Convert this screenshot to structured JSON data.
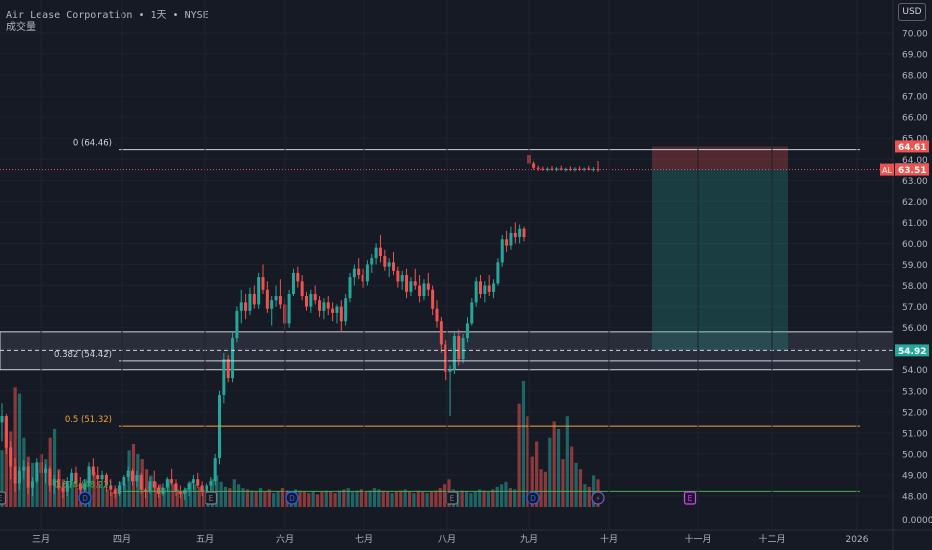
{
  "header": {
    "symbol_line": "Air Lease Corporation  •  1天  •  NYSE",
    "volume_label": "成交量",
    "currency_button": "USD"
  },
  "colors": {
    "background": "#161a25",
    "up": "#26a69a",
    "down": "#ef5350",
    "fib_0": "#d1d4dc",
    "fib_0382": "#d1d4dc",
    "fib_05": "#f0a43a",
    "fib_0618": "#4caf50",
    "last_price": "#ef5350",
    "current_line": "#26a69a"
  },
  "chart_data": {
    "type": "candlestick",
    "y_axis": {
      "ticks": [
        "70.00",
        "69.00",
        "68.00",
        "67.00",
        "66.00",
        "65.00",
        "64.00",
        "63.00",
        "62.00",
        "61.00",
        "60.00",
        "59.00",
        "58.00",
        "57.00",
        "56.00",
        "55.00",
        "54.00",
        "53.00",
        "52.00",
        "51.00",
        "50.00",
        "49.00",
        "48.00"
      ],
      "range": [
        47.5,
        70.5
      ],
      "volume_zero_label": "0.0000"
    },
    "x_axis": {
      "labels": [
        "三月",
        "四月",
        "五月",
        "六月",
        "七月",
        "八月",
        "九月",
        "十月",
        "十一月",
        "十二月",
        "2026"
      ]
    },
    "price_labels": {
      "top": "64.61",
      "mid": "63.53",
      "last_ticker": "AL",
      "last": "63.51",
      "current": "54.92"
    },
    "fibonacci": [
      {
        "label": "0 (64.46)",
        "level": 64.46,
        "color": "#d1d4dc"
      },
      {
        "label": "0.382 (54.42)",
        "level": 54.42,
        "color": "#d1d4dc"
      },
      {
        "label": "0.5 (51.32)",
        "level": 51.32,
        "color": "#f0a43a"
      },
      {
        "label": "0.618 (48.22)",
        "level": 48.22,
        "color": "#4caf50"
      }
    ],
    "zone": {
      "top": 55.8,
      "bottom": 54.0
    },
    "dashed_level": 54.92,
    "dotted_level": 63.51,
    "position_tool": {
      "entry": 63.53,
      "stop": 64.61,
      "target": 54.92
    },
    "events": [
      {
        "type": "D",
        "label": "D"
      },
      {
        "type": "E",
        "label": "E"
      },
      {
        "type": "D",
        "label": "D"
      },
      {
        "type": "E",
        "label": "E"
      },
      {
        "type": "D",
        "label": "D"
      },
      {
        "type": "split",
        "label": "⚡"
      },
      {
        "type": "E-future",
        "label": "E"
      }
    ],
    "ohlc": [
      [
        51.5,
        52.4,
        50.6,
        51.8
      ],
      [
        51.8,
        51.9,
        50.0,
        50.3
      ],
      [
        50.3,
        50.6,
        48.8,
        49.4
      ],
      [
        49.4,
        49.8,
        48.2,
        48.6
      ],
      [
        48.6,
        49.4,
        48.3,
        49.2
      ],
      [
        49.2,
        49.7,
        48.8,
        49.4
      ],
      [
        49.4,
        49.6,
        48.1,
        48.4
      ],
      [
        48.4,
        48.9,
        48.0,
        48.7
      ],
      [
        48.7,
        49.8,
        48.6,
        49.6
      ],
      [
        49.6,
        49.9,
        48.9,
        49.1
      ],
      [
        49.1,
        49.5,
        48.6,
        49.3
      ],
      [
        49.3,
        49.4,
        48.2,
        48.5
      ],
      [
        48.5,
        49.0,
        48.1,
        48.8
      ],
      [
        48.8,
        49.2,
        48.3,
        48.4
      ],
      [
        48.4,
        48.6,
        47.9,
        48.2
      ],
      [
        48.2,
        48.9,
        48.0,
        48.7
      ],
      [
        48.7,
        49.3,
        48.5,
        49.1
      ],
      [
        49.1,
        49.4,
        48.4,
        48.6
      ],
      [
        48.6,
        48.9,
        48.1,
        48.3
      ],
      [
        48.3,
        48.8,
        48.0,
        48.6
      ],
      [
        48.6,
        49.6,
        48.5,
        49.4
      ],
      [
        49.4,
        49.8,
        48.9,
        49.0
      ],
      [
        49.0,
        49.4,
        48.5,
        48.8
      ],
      [
        48.8,
        49.2,
        48.4,
        49.0
      ],
      [
        49.0,
        49.1,
        48.2,
        48.5
      ],
      [
        48.5,
        48.8,
        48.0,
        48.3
      ],
      [
        48.3,
        48.5,
        47.9,
        48.1
      ],
      [
        48.1,
        48.7,
        48.0,
        48.5
      ],
      [
        48.5,
        49.0,
        48.3,
        48.9
      ],
      [
        48.9,
        49.4,
        48.7,
        49.2
      ],
      [
        49.2,
        49.3,
        48.5,
        48.7
      ],
      [
        48.7,
        49.2,
        48.4,
        49.0
      ],
      [
        49.0,
        49.1,
        48.1,
        48.3
      ],
      [
        48.3,
        48.4,
        47.9,
        48.2
      ],
      [
        48.2,
        48.9,
        48.1,
        48.7
      ],
      [
        48.7,
        49.2,
        48.2,
        48.4
      ],
      [
        48.4,
        48.5,
        47.9,
        48.1
      ],
      [
        48.1,
        48.6,
        48.0,
        48.4
      ],
      [
        48.4,
        48.9,
        48.2,
        48.8
      ],
      [
        48.8,
        49.3,
        48.5,
        48.6
      ],
      [
        48.6,
        48.8,
        48.0,
        48.2
      ],
      [
        48.2,
        48.5,
        47.9,
        48.1
      ],
      [
        48.1,
        48.4,
        47.8,
        48.3
      ],
      [
        48.3,
        48.7,
        48.0,
        48.6
      ],
      [
        48.6,
        49.0,
        48.3,
        48.8
      ],
      [
        48.8,
        49.1,
        48.4,
        48.5
      ],
      [
        48.5,
        48.7,
        48.0,
        48.2
      ],
      [
        48.2,
        48.6,
        47.9,
        48.5
      ],
      [
        48.5,
        48.9,
        48.2,
        48.7
      ],
      [
        48.7,
        50.0,
        48.5,
        49.8
      ],
      [
        49.8,
        53.0,
        49.5,
        52.8
      ],
      [
        52.8,
        54.8,
        52.4,
        54.5
      ],
      [
        54.5,
        54.7,
        53.4,
        53.6
      ],
      [
        53.6,
        55.8,
        53.4,
        55.5
      ],
      [
        55.5,
        57.0,
        55.3,
        56.8
      ],
      [
        56.8,
        57.8,
        56.2,
        57.2
      ],
      [
        57.2,
        57.6,
        56.4,
        56.8
      ],
      [
        56.8,
        57.9,
        56.6,
        57.6
      ],
      [
        57.6,
        58.0,
        56.9,
        57.1
      ],
      [
        57.1,
        58.6,
        56.9,
        58.4
      ],
      [
        58.4,
        59.0,
        57.6,
        57.8
      ],
      [
        57.8,
        58.2,
        56.7,
        56.9
      ],
      [
        56.9,
        57.5,
        56.1,
        57.3
      ],
      [
        57.3,
        58.0,
        57.0,
        57.5
      ],
      [
        57.5,
        58.3,
        56.9,
        57.1
      ],
      [
        57.1,
        57.4,
        55.9,
        56.2
      ],
      [
        56.2,
        57.8,
        56.0,
        57.6
      ],
      [
        57.6,
        58.8,
        57.5,
        58.6
      ],
      [
        58.6,
        58.9,
        57.9,
        58.2
      ],
      [
        58.2,
        58.5,
        57.3,
        57.5
      ],
      [
        57.5,
        57.7,
        56.8,
        57.0
      ],
      [
        57.0,
        57.8,
        56.7,
        57.6
      ],
      [
        57.6,
        58.0,
        57.1,
        57.3
      ],
      [
        57.3,
        57.5,
        56.5,
        56.8
      ],
      [
        56.8,
        57.4,
        56.4,
        57.2
      ],
      [
        57.2,
        57.5,
        56.6,
        56.9
      ],
      [
        56.9,
        57.2,
        56.3,
        56.7
      ],
      [
        56.7,
        57.1,
        56.2,
        57.0
      ],
      [
        57.0,
        57.3,
        55.8,
        56.3
      ],
      [
        56.3,
        57.6,
        56.1,
        57.4
      ],
      [
        57.4,
        58.6,
        57.2,
        58.4
      ],
      [
        58.4,
        59.0,
        58.0,
        58.8
      ],
      [
        58.8,
        59.3,
        58.3,
        58.5
      ],
      [
        58.5,
        58.8,
        57.9,
        58.2
      ],
      [
        58.2,
        59.2,
        58.0,
        59.0
      ],
      [
        59.0,
        59.5,
        58.6,
        59.3
      ],
      [
        59.3,
        60.0,
        59.0,
        59.8
      ],
      [
        59.8,
        60.4,
        59.1,
        59.4
      ],
      [
        59.4,
        59.7,
        58.7,
        58.9
      ],
      [
        58.9,
        59.3,
        58.4,
        59.1
      ],
      [
        59.1,
        59.6,
        58.5,
        58.7
      ],
      [
        58.7,
        58.9,
        57.9,
        58.2
      ],
      [
        58.2,
        58.7,
        57.8,
        58.5
      ],
      [
        58.5,
        58.8,
        57.4,
        57.7
      ],
      [
        57.7,
        58.4,
        57.5,
        58.2
      ],
      [
        58.2,
        58.8,
        57.8,
        58.0
      ],
      [
        58.0,
        58.5,
        57.2,
        57.5
      ],
      [
        57.5,
        58.3,
        57.3,
        58.1
      ],
      [
        58.1,
        58.6,
        57.5,
        57.8
      ],
      [
        57.8,
        58.0,
        56.6,
        56.9
      ],
      [
        56.9,
        57.3,
        56.0,
        56.3
      ],
      [
        56.3,
        56.5,
        54.8,
        55.2
      ],
      [
        55.2,
        55.4,
        53.5,
        53.9
      ],
      [
        53.9,
        54.2,
        51.8,
        54.0
      ],
      [
        54.0,
        55.8,
        53.8,
        55.6
      ],
      [
        55.6,
        55.9,
        54.2,
        54.5
      ],
      [
        54.5,
        55.7,
        54.3,
        55.5
      ],
      [
        55.5,
        56.5,
        55.3,
        56.2
      ],
      [
        56.2,
        57.4,
        56.1,
        57.2
      ],
      [
        57.2,
        58.4,
        57.0,
        58.2
      ],
      [
        58.2,
        58.5,
        57.4,
        57.6
      ],
      [
        57.6,
        58.2,
        57.2,
        58.0
      ],
      [
        58.0,
        58.5,
        57.5,
        57.7
      ],
      [
        57.7,
        58.3,
        57.4,
        58.1
      ],
      [
        58.1,
        59.3,
        58.0,
        59.1
      ],
      [
        59.1,
        60.4,
        58.9,
        60.2
      ],
      [
        60.2,
        60.6,
        59.6,
        59.9
      ],
      [
        59.9,
        60.8,
        59.7,
        60.5
      ],
      [
        60.5,
        61.0,
        60.0,
        60.3
      ],
      [
        60.3,
        60.9,
        60.0,
        60.7
      ],
      [
        60.7,
        60.8,
        60.1,
        60.3
      ],
      [
        64.2,
        64.3,
        63.7,
        63.8
      ],
      [
        63.8,
        63.9,
        63.5,
        63.6
      ],
      [
        63.6,
        63.7,
        63.45,
        63.55
      ],
      [
        63.55,
        63.65,
        63.45,
        63.5
      ],
      [
        63.5,
        63.62,
        63.42,
        63.55
      ],
      [
        63.55,
        63.68,
        63.45,
        63.52
      ],
      [
        63.52,
        63.63,
        63.43,
        63.56
      ],
      [
        63.56,
        63.7,
        63.46,
        63.5
      ],
      [
        63.5,
        63.6,
        63.41,
        63.54
      ],
      [
        63.54,
        63.66,
        63.44,
        63.51
      ],
      [
        63.51,
        63.62,
        63.42,
        63.55
      ],
      [
        63.55,
        63.67,
        63.45,
        63.52
      ],
      [
        63.52,
        63.61,
        63.43,
        63.56
      ],
      [
        63.56,
        63.69,
        63.46,
        63.5
      ],
      [
        63.5,
        63.63,
        63.42,
        63.53
      ],
      [
        63.53,
        63.92,
        63.4,
        63.51
      ]
    ],
    "volume": [
      0.45,
      0.7,
      0.6,
      0.95,
      0.9,
      0.55,
      0.4,
      0.35,
      0.3,
      0.42,
      0.38,
      0.55,
      0.62,
      0.3,
      0.22,
      0.18,
      0.2,
      0.15,
      0.18,
      0.22,
      0.3,
      0.28,
      0.2,
      0.16,
      0.14,
      0.12,
      0.15,
      0.2,
      0.18,
      0.45,
      0.5,
      0.42,
      0.38,
      0.3,
      0.25,
      0.2,
      0.18,
      0.15,
      0.22,
      0.18,
      0.14,
      0.12,
      0.15,
      0.2,
      0.18,
      0.16,
      0.14,
      0.12,
      0.22,
      0.25,
      0.2,
      0.16,
      0.15,
      0.22,
      0.18,
      0.15,
      0.14,
      0.13,
      0.12,
      0.15,
      0.12,
      0.14,
      0.11,
      0.12,
      0.15,
      0.13,
      0.12,
      0.14,
      0.13,
      0.12,
      0.11,
      0.12,
      0.1,
      0.12,
      0.13,
      0.12,
      0.11,
      0.13,
      0.14,
      0.15,
      0.12,
      0.13,
      0.14,
      0.12,
      0.13,
      0.15,
      0.14,
      0.13,
      0.12,
      0.11,
      0.12,
      0.13,
      0.14,
      0.12,
      0.11,
      0.13,
      0.12,
      0.11,
      0.12,
      0.13,
      0.15,
      0.18,
      0.22,
      0.14,
      0.12,
      0.13,
      0.12,
      0.11,
      0.12,
      0.14,
      0.13,
      0.12,
      0.14,
      0.16,
      0.18,
      0.2,
      0.15,
      0.14,
      0.82,
      1.0,
      0.72,
      0.4,
      0.52,
      0.3,
      0.28,
      0.55,
      0.68,
      0.62,
      0.38,
      0.72,
      0.48,
      0.35,
      0.3,
      0.18,
      0.16,
      0.25,
      0.22
    ]
  }
}
